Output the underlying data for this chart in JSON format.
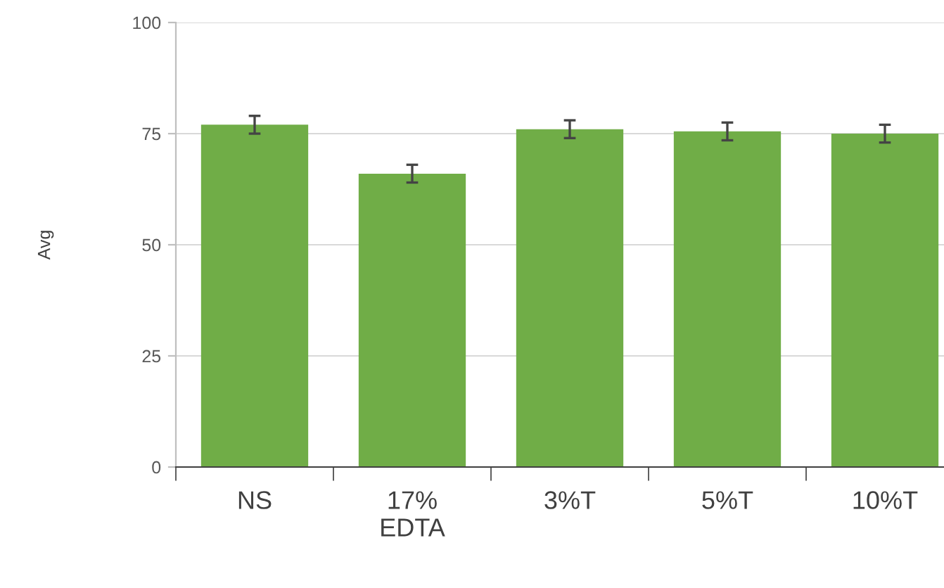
{
  "chart_data": {
    "type": "bar",
    "ylabel": "Avg",
    "categories": [
      "NS",
      "17%\nEDTA",
      "3%T",
      "5%T",
      "10%T"
    ],
    "values": [
      77,
      66,
      76,
      75.5,
      75
    ],
    "errors": [
      2,
      2,
      2,
      2,
      2
    ],
    "color": "#70ad47",
    "ylim": [
      0,
      100
    ],
    "yticks": [
      0,
      25,
      50,
      75,
      100
    ],
    "grid": "y"
  }
}
